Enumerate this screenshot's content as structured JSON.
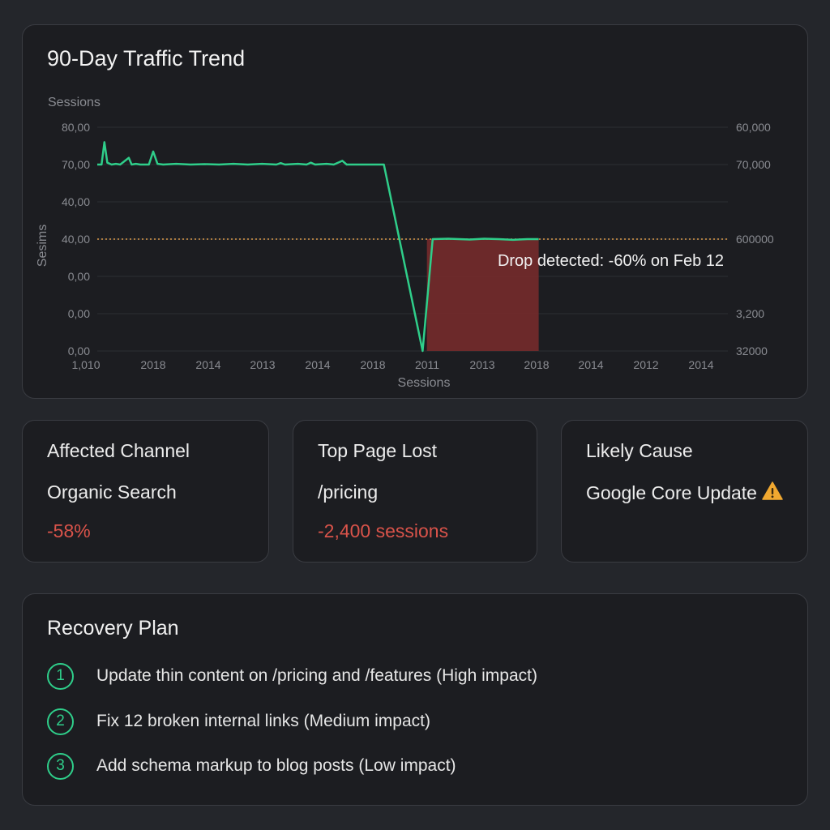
{
  "chart_card": {
    "title": "90-Day Traffic Trend",
    "top_label": "Sessions"
  },
  "chart_data": {
    "type": "line",
    "title": "90-Day Traffic Trend",
    "xlabel": "Sessions",
    "ylabel": "Sesims",
    "x_tick_labels": [
      "1,010",
      "2018",
      "2014",
      "2013",
      "2014",
      "2018",
      "2011",
      "2013",
      "2018",
      "2014",
      "2012",
      "2014"
    ],
    "y_tick_labels_left": [
      "80,00",
      "70,00",
      "40,00",
      "40,00",
      "0,00",
      "0,00",
      "0,00"
    ],
    "y_tick_labels_right": [
      "60,000",
      "70,000",
      "600000",
      "3,200",
      "32000"
    ],
    "ylim_index": [
      0,
      6
    ],
    "series": [
      {
        "color": "#2fce8a",
        "points": [
          [
            0.0,
            5.0
          ],
          [
            0.3,
            5.0
          ],
          [
            0.5,
            5.6
          ],
          [
            0.7,
            5.05
          ],
          [
            1.0,
            5.0
          ],
          [
            1.3,
            5.02
          ],
          [
            1.6,
            5.0
          ],
          [
            2.2,
            5.18
          ],
          [
            2.4,
            5.0
          ],
          [
            2.7,
            5.02
          ],
          [
            3.0,
            5.0
          ],
          [
            3.6,
            5.0
          ],
          [
            3.9,
            5.35
          ],
          [
            4.2,
            5.02
          ],
          [
            4.6,
            5.0
          ],
          [
            5.5,
            5.02
          ],
          [
            6.5,
            5.0
          ],
          [
            7.5,
            5.01
          ],
          [
            8.5,
            5.0
          ],
          [
            9.5,
            5.02
          ],
          [
            10.5,
            5.0
          ],
          [
            11.5,
            5.02
          ],
          [
            12.5,
            5.0
          ],
          [
            12.8,
            5.04
          ],
          [
            13.1,
            5.0
          ],
          [
            14.0,
            5.02
          ],
          [
            14.6,
            5.0
          ],
          [
            14.9,
            5.05
          ],
          [
            15.2,
            5.0
          ],
          [
            16.0,
            5.02
          ],
          [
            16.5,
            5.0
          ],
          [
            17.1,
            5.1
          ],
          [
            17.4,
            5.0
          ],
          [
            18.0,
            5.0
          ],
          [
            19.0,
            5.0
          ],
          [
            20.0,
            5.0
          ],
          [
            22.7,
            0.0
          ],
          [
            23.4,
            3.0
          ],
          [
            24.5,
            3.01
          ],
          [
            26.0,
            2.99
          ],
          [
            27.0,
            3.01
          ],
          [
            28.0,
            3.0
          ],
          [
            29.0,
            2.98
          ],
          [
            30.0,
            3.0
          ],
          [
            30.8,
            3.0
          ]
        ]
      }
    ],
    "xlim": [
      0,
      44
    ],
    "reference_line": {
      "y_index": 3,
      "color": "#d99a4a",
      "style": "dotted"
    },
    "highlight_region": {
      "x_start": 23.0,
      "x_end": 30.8,
      "color": "#7a2c2c"
    },
    "annotation": "Drop detected: -60% on Feb 12",
    "grid": true
  },
  "stats": [
    {
      "label": "Affected Channel",
      "value": "Organic Search",
      "delta": "-58%",
      "delta_color": "#d9534a"
    },
    {
      "label": "Top Page Lost",
      "value": "/pricing",
      "delta": "-2,400 sessions",
      "delta_color": "#d9534a"
    },
    {
      "label": "Likely Cause",
      "value": "Google Core Update",
      "icon": "warning-icon",
      "icon_color": "#f0a830"
    }
  ],
  "plan": {
    "title": "Recovery Plan",
    "accent_color": "#2fce8a",
    "items": [
      {
        "num": "1",
        "text": "Update thin content on /pricing and /features (High impact)"
      },
      {
        "num": "2",
        "text": "Fix 12 broken internal links (Medium impact)"
      },
      {
        "num": "3",
        "text": "Add schema markup to blog posts (Low impact)"
      }
    ]
  }
}
